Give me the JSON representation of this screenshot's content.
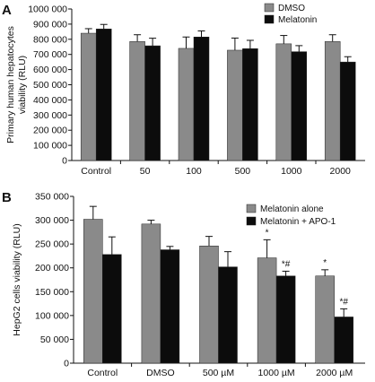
{
  "colors": {
    "series_gray": "#8a8a8a",
    "series_black": "#0c0c0c",
    "axis": "#111111"
  },
  "chart_data": [
    {
      "panel": "A",
      "type": "bar",
      "title": "",
      "xlabel": "",
      "ylabel": "Primary human hepatocytes viability (RLU)",
      "ylabel_lines": [
        "Primary human hepatocytes",
        "viability (RLU)"
      ],
      "ylim": [
        0,
        1000000
      ],
      "yticks": [
        "0",
        "100 000",
        "200 000",
        "300 000",
        "400 000",
        "500 000",
        "600 000",
        "700 000",
        "800 000",
        "900 000",
        "1000 000"
      ],
      "grid": false,
      "legend_position": "top-right",
      "categories": [
        "Control",
        "50",
        "100",
        "500",
        "1000",
        "2000"
      ],
      "series": [
        {
          "name": "DMSO",
          "color": "#8a8a8a",
          "values": [
            840000,
            785000,
            740000,
            728000,
            770000,
            785000
          ],
          "errors": [
            30000,
            45000,
            75000,
            80000,
            55000,
            45000
          ]
        },
        {
          "name": "Melatonin",
          "color": "#0c0c0c",
          "values": [
            868000,
            757000,
            815000,
            738000,
            718000,
            650000
          ],
          "errors": [
            30000,
            50000,
            40000,
            55000,
            40000,
            35000
          ]
        }
      ]
    },
    {
      "panel": "B",
      "type": "bar",
      "title": "",
      "xlabel": "",
      "ylabel": "HepG2 cells viability (RLU)",
      "ylabel_lines": [
        "HepG2 cells viability (RLU)"
      ],
      "ylim": [
        0,
        350000
      ],
      "yticks": [
        "0",
        "50 000",
        "100 000",
        "150 000",
        "200 000",
        "250 000",
        "300 000",
        "350 000"
      ],
      "grid": false,
      "legend_position": "top-right",
      "categories": [
        "Control",
        "DMSO",
        "500 µM",
        "1000 µM",
        "2000 µM"
      ],
      "series": [
        {
          "name": "Melatonin alone",
          "color": "#8a8a8a",
          "values": [
            302000,
            292000,
            246000,
            221000,
            183000
          ],
          "errors": [
            27000,
            8000,
            20000,
            38000,
            13000
          ],
          "annotations": [
            "",
            "",
            "",
            "*",
            "*"
          ]
        },
        {
          "name": "Melatonin + APO-1",
          "color": "#0c0c0c",
          "values": [
            228000,
            238000,
            202000,
            183000,
            97000
          ],
          "errors": [
            37000,
            7000,
            32000,
            10000,
            17000
          ],
          "annotations": [
            "",
            "",
            "",
            "*#",
            "*#"
          ]
        }
      ]
    }
  ]
}
